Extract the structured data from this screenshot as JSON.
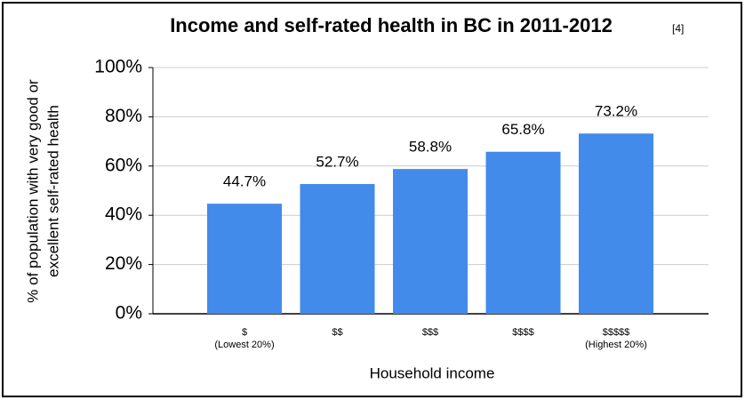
{
  "chart_data": {
    "type": "bar",
    "title": "Income and self-rated health in BC in 2011-2012",
    "title_note": "[4]",
    "y_label": [
      "% of population with very good or",
      "excellent self-rated health"
    ],
    "x_label": "Household income",
    "categories": [
      "$",
      "$$",
      "$$$",
      "$$$$",
      "$$$$$"
    ],
    "category_notes": [
      "(Lowest 20%)",
      null,
      null,
      null,
      "(Highest 20%)"
    ],
    "values": [
      44.7,
      52.7,
      58.8,
      65.8,
      73.2
    ],
    "value_labels": [
      "44.7%",
      "52.7%",
      "58.8%",
      "65.8%",
      "73.2%"
    ],
    "color": "#428bea",
    "ylim": [
      0,
      100
    ],
    "yticks": [
      {
        "value": 0,
        "label": "0%"
      },
      {
        "value": 20,
        "label": "20%"
      },
      {
        "value": 40,
        "label": "40%"
      },
      {
        "value": 60,
        "label": "60%"
      },
      {
        "value": 80,
        "label": "80%"
      },
      {
        "value": 100,
        "label": "100%"
      }
    ],
    "grid": true
  }
}
